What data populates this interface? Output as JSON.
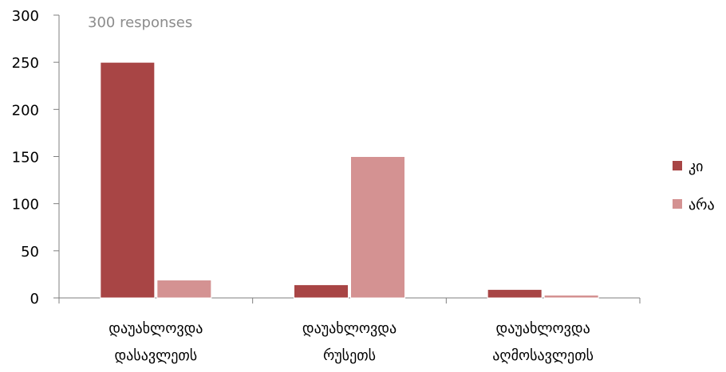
{
  "chart_data": {
    "type": "bar",
    "subtitle": "300 responses",
    "categories": [
      [
        "დაუახლოვდა",
        "დასავლეთს"
      ],
      [
        "დაუახლოვდა",
        "რუსეთს"
      ],
      [
        "დაუახლოვდა",
        "აღმოსავლეთს"
      ]
    ],
    "series": [
      {
        "name": "კი",
        "values": [
          250,
          14,
          9
        ],
        "color": "#a84545"
      },
      {
        "name": "არა",
        "values": [
          19,
          150,
          3
        ],
        "color": "#d49292"
      }
    ],
    "ylim": [
      0,
      300
    ],
    "yticks": [
      0,
      50,
      100,
      150,
      200,
      250,
      300
    ],
    "grid": false,
    "legend_position": "right"
  }
}
